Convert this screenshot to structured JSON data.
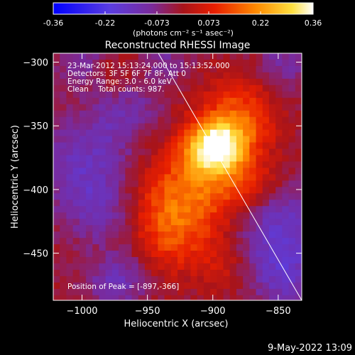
{
  "colorbar": {
    "tick_labels": [
      "-0.36",
      "-0.22",
      "-0.073",
      "0.073",
      "0.22",
      "0.36"
    ],
    "units": "(photons cm⁻² s⁻¹ asec⁻²)",
    "range": [
      -0.36,
      0.36
    ],
    "colors": [
      "#0000ff",
      "#6a3bd4",
      "#7a2a9a",
      "#b41414",
      "#ff5a00",
      "#ffc800",
      "#ffffff"
    ]
  },
  "chart_data": {
    "type": "heatmap",
    "title": "Reconstructed RHESSI Image",
    "xlabel": "Heliocentric X (arcsec)",
    "ylabel": "Heliocentric Y (arcsec)",
    "xlim": [
      -1022,
      -832
    ],
    "ylim": [
      -487,
      -293
    ],
    "x_ticks": [
      -1000,
      -950,
      -900,
      -850
    ],
    "y_ticks": [
      -300,
      -350,
      -400,
      -450
    ],
    "x_tick_labels": [
      "−1000",
      "−950",
      "−900",
      "−850"
    ],
    "y_tick_labels": [
      "−300",
      "−350",
      "−400",
      "−450"
    ],
    "peak": {
      "x": -897,
      "y": -366
    },
    "annotations": [
      "23-Mar-2012 15:13:24.000 to 15:13:52.000",
      "Detectors: 3F 5F 6F 7F 8F, Att 0",
      "Energy Range: 3.0 - 6.0 keV",
      "Clean    Total counts: 987."
    ],
    "peak_label": "Position of Peak = [-897,-366]"
  },
  "footer": {
    "timestamp": "9-May-2022 13:09"
  }
}
